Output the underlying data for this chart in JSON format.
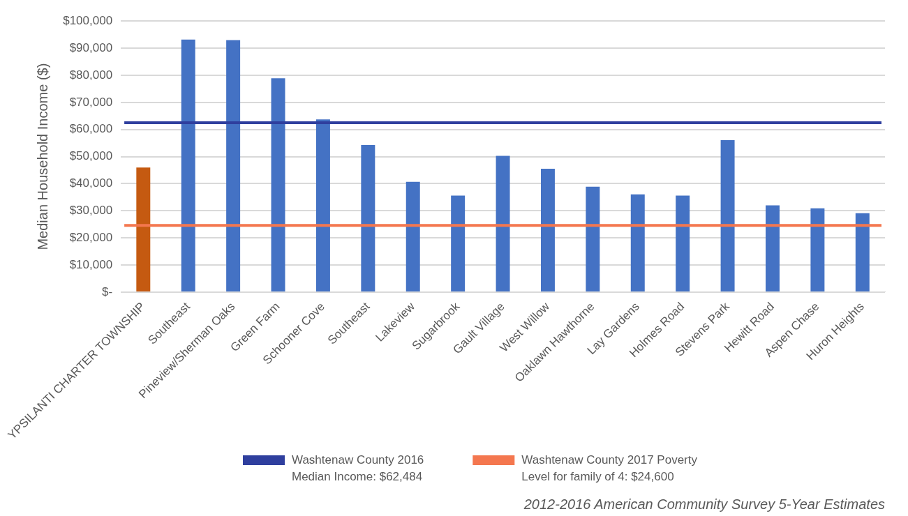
{
  "chart_data": {
    "type": "bar",
    "ylabel": "Median Household Income ($)",
    "categories": [
      "YPSILANTI CHARTER TOWNSHIP",
      "Southeast",
      "Pineview/Sherman Oaks",
      "Green Farm",
      "Schooner Cove",
      "Southeast",
      "Lakeview",
      "Sugarbrook",
      "Gault Village",
      "West Willow",
      "Oaklawn Hawthorne",
      "Lay Gardens",
      "Holmes Road",
      "Stevens Park",
      "Hewitt Road",
      "Aspen Chase",
      "Huron Heights"
    ],
    "values": [
      46000,
      93200,
      93000,
      78900,
      63700,
      54300,
      40700,
      35600,
      50300,
      45500,
      38900,
      36100,
      35600,
      56100,
      32000,
      30900,
      29100
    ],
    "colors": [
      "#c55a11",
      "#4472c4",
      "#4472c4",
      "#4472c4",
      "#4472c4",
      "#4472c4",
      "#4472c4",
      "#4472c4",
      "#4472c4",
      "#4472c4",
      "#4472c4",
      "#4472c4",
      "#4472c4",
      "#4472c4",
      "#4472c4",
      "#4472c4",
      "#4472c4"
    ],
    "ylim": [
      0,
      100000
    ],
    "yticks": [
      {
        "value": 0,
        "label": "$-"
      },
      {
        "value": 10000,
        "label": "$10,000"
      },
      {
        "value": 20000,
        "label": "$20,000"
      },
      {
        "value": 30000,
        "label": "$30,000"
      },
      {
        "value": 40000,
        "label": "$40,000"
      },
      {
        "value": 50000,
        "label": "$50,000"
      },
      {
        "value": 60000,
        "label": "$60,000"
      },
      {
        "value": 70000,
        "label": "$70,000"
      },
      {
        "value": 80000,
        "label": "$80,000"
      },
      {
        "value": 90000,
        "label": "$90,000"
      },
      {
        "value": 100000,
        "label": "$100,000"
      }
    ],
    "grid": "y",
    "legend": "bottom",
    "ref_lines": [
      {
        "axis": "y",
        "value": 62484,
        "label": "Washtenaw County 2016\nMedian Income: $62,484",
        "color": "#2f3f9e"
      },
      {
        "axis": "y",
        "value": 24600,
        "label": "Washtenaw County 2017 Poverty\nLevel for family of 4: $24,600",
        "color": "#f4774f"
      }
    ],
    "annotations": [
      "2012-2016 American Community Survey 5-Year Estimates"
    ]
  }
}
